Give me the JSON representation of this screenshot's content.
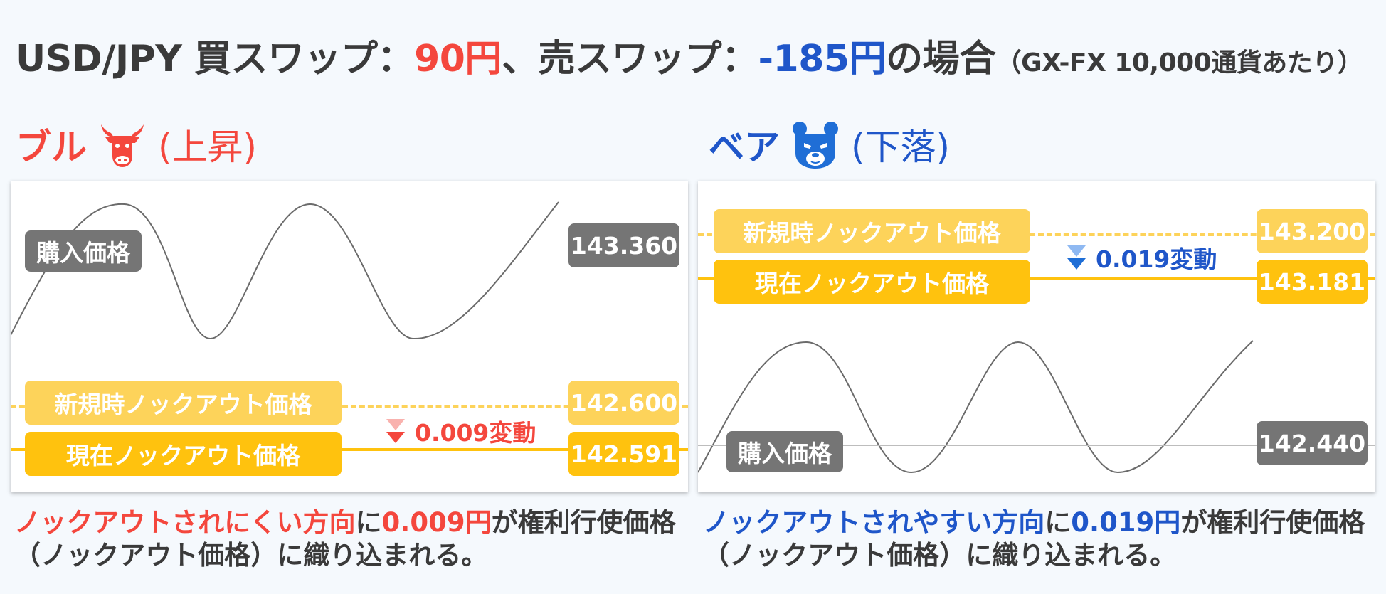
{
  "title": {
    "part1": "USD/JPY 買スワップ：",
    "buy_swap": "90円",
    "part2": "、売スワップ：",
    "sell_swap": "-185円",
    "part3": "の場合",
    "note": "（GX-FX 10,000通貨あたり）"
  },
  "colors": {
    "bull": "#f4473d",
    "bear": "#1f56c9",
    "knockout_line": "#ffc20e",
    "purchase_tag": "#757575"
  },
  "bull": {
    "label": "ブル",
    "sub": "(上昇)",
    "icon": "bull-icon",
    "purchase_label": "購入価格",
    "purchase_value": "143.360",
    "new_ko_label": "新規時ノックアウト価格",
    "new_ko_value": "142.600",
    "current_ko_label": "現在ノックアウト価格",
    "current_ko_value": "142.591",
    "change": "0.009変動",
    "caption_highlight": "ノックアウトされにくい方向",
    "caption_mid": "に",
    "caption_amount": "0.009円",
    "caption_rest": "が権利行使価格（ノックアウト価格）に織り込まれる。"
  },
  "bear": {
    "label": "ベア",
    "sub": "(下落)",
    "icon": "bear-icon",
    "purchase_label": "購入価格",
    "purchase_value": "142.440",
    "new_ko_label": "新規時ノックアウト価格",
    "new_ko_value": "143.200",
    "current_ko_label": "現在ノックアウト価格",
    "current_ko_value": "143.181",
    "change": "0.019変動",
    "caption_highlight": "ノックアウトされやすい方向",
    "caption_mid": "に",
    "caption_amount": "0.019円",
    "caption_rest": "が権利行使価格（ノックアウト価格）に織り込まれる。"
  }
}
